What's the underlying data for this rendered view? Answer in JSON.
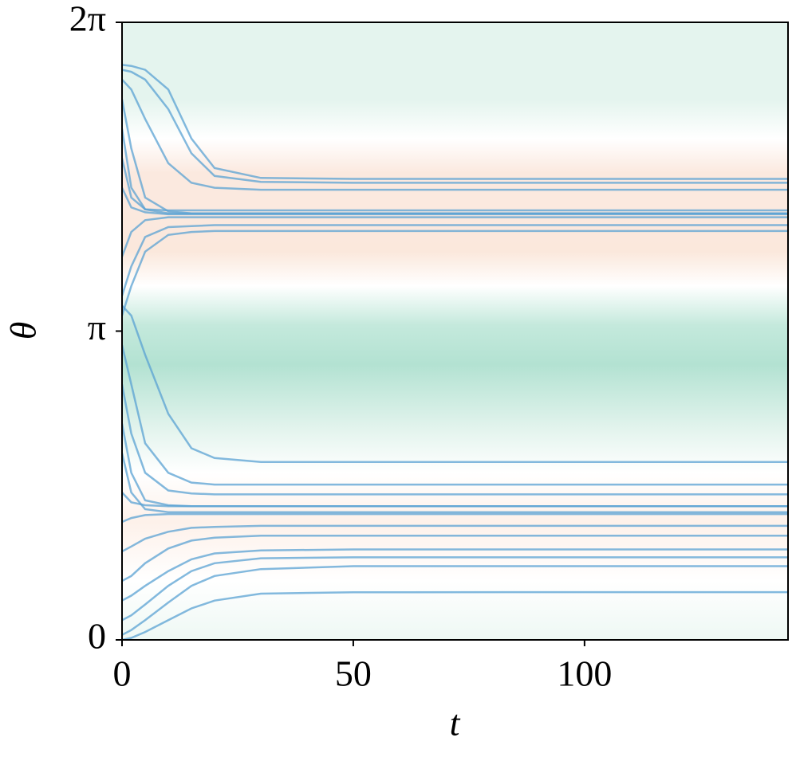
{
  "chart_data": {
    "type": "line",
    "xlabel": "t",
    "ylabel": "θ",
    "xlim": [
      0,
      144
    ],
    "ylim": [
      0,
      6.28319
    ],
    "xticks": [
      0,
      50,
      100
    ],
    "yticks": [
      0,
      {
        "value": 3.14159,
        "label": "π"
      },
      {
        "value": 6.28319,
        "label": "2π"
      }
    ],
    "line_color": "#5aa2d3",
    "heatmap": {
      "y": [
        0,
        0.6,
        1.2,
        1.7,
        2.1,
        2.8,
        3.2,
        3.6,
        3.95,
        4.4,
        4.75,
        5.1,
        5.5,
        6.28319
      ],
      "colors": [
        "#eef8f4",
        "#ffffff",
        "#fdf1ea",
        "#ffffff",
        "#e6f5ef",
        "#b3e2d2",
        "#c4e9dc",
        "#ffffff",
        "#fbe8dc",
        "#fbe9df",
        "#fbe9df",
        "#ffffff",
        "#e4f4ee",
        "#e4f4ee"
      ]
    },
    "x": [
      0,
      2,
      5,
      10,
      15,
      20,
      30,
      50,
      144
    ],
    "series": [
      {
        "values": [
          5.85,
          5.84,
          5.8,
          5.6,
          5.1,
          4.8,
          4.7,
          4.69,
          4.69
        ]
      },
      {
        "values": [
          5.8,
          5.78,
          5.7,
          5.4,
          4.95,
          4.72,
          4.66,
          4.65,
          4.65
        ]
      },
      {
        "values": [
          5.7,
          5.6,
          5.3,
          4.85,
          4.65,
          4.6,
          4.58,
          4.58,
          4.58
        ]
      },
      {
        "values": [
          5.5,
          5.0,
          4.5,
          4.36,
          4.34,
          4.34,
          4.34,
          4.34,
          4.34
        ]
      },
      {
        "values": [
          5.2,
          4.6,
          4.38,
          4.34,
          4.34,
          4.34,
          4.34,
          4.34,
          4.34
        ]
      },
      {
        "values": [
          4.9,
          4.5,
          4.38,
          4.37,
          4.37,
          4.37,
          4.37,
          4.37,
          4.37
        ]
      },
      {
        "values": [
          4.6,
          4.4,
          4.35,
          4.33,
          4.33,
          4.33,
          4.33,
          4.33,
          4.33
        ]
      },
      {
        "values": [
          3.9,
          4.15,
          4.27,
          4.3,
          4.3,
          4.3,
          4.3,
          4.3,
          4.3
        ]
      },
      {
        "values": [
          3.5,
          3.8,
          4.1,
          4.2,
          4.21,
          4.22,
          4.22,
          4.22,
          4.22
        ]
      },
      {
        "values": [
          3.3,
          3.6,
          3.95,
          4.12,
          4.15,
          4.16,
          4.16,
          4.16,
          4.16
        ]
      },
      {
        "values": [
          3.4,
          3.3,
          2.9,
          2.3,
          1.95,
          1.85,
          1.81,
          1.81,
          1.81
        ]
      },
      {
        "values": [
          3.0,
          2.6,
          2.0,
          1.7,
          1.6,
          1.58,
          1.58,
          1.58,
          1.58
        ]
      },
      {
        "values": [
          2.6,
          2.1,
          1.7,
          1.52,
          1.49,
          1.48,
          1.48,
          1.48,
          1.48
        ]
      },
      {
        "values": [
          2.2,
          1.7,
          1.42,
          1.37,
          1.36,
          1.36,
          1.36,
          1.36,
          1.36
        ]
      },
      {
        "values": [
          1.9,
          1.5,
          1.33,
          1.3,
          1.3,
          1.3,
          1.3,
          1.3,
          1.3
        ]
      },
      {
        "values": [
          1.5,
          1.4,
          1.37,
          1.36,
          1.36,
          1.36,
          1.36,
          1.36,
          1.36
        ]
      },
      {
        "values": [
          1.2,
          1.24,
          1.27,
          1.28,
          1.28,
          1.28,
          1.28,
          1.28,
          1.28
        ]
      },
      {
        "values": [
          0.9,
          0.95,
          1.03,
          1.1,
          1.14,
          1.15,
          1.16,
          1.16,
          1.16
        ]
      },
      {
        "values": [
          0.6,
          0.65,
          0.78,
          0.93,
          1.01,
          1.04,
          1.06,
          1.06,
          1.06
        ]
      },
      {
        "values": [
          0.4,
          0.45,
          0.55,
          0.7,
          0.82,
          0.88,
          0.91,
          0.92,
          0.92
        ]
      },
      {
        "values": [
          0.2,
          0.25,
          0.36,
          0.55,
          0.7,
          0.78,
          0.83,
          0.84,
          0.84
        ]
      },
      {
        "values": [
          0.05,
          0.1,
          0.2,
          0.38,
          0.55,
          0.65,
          0.72,
          0.75,
          0.75
        ]
      },
      {
        "values": [
          0.0,
          0.02,
          0.08,
          0.2,
          0.32,
          0.4,
          0.47,
          0.485,
          0.486
        ]
      }
    ]
  }
}
